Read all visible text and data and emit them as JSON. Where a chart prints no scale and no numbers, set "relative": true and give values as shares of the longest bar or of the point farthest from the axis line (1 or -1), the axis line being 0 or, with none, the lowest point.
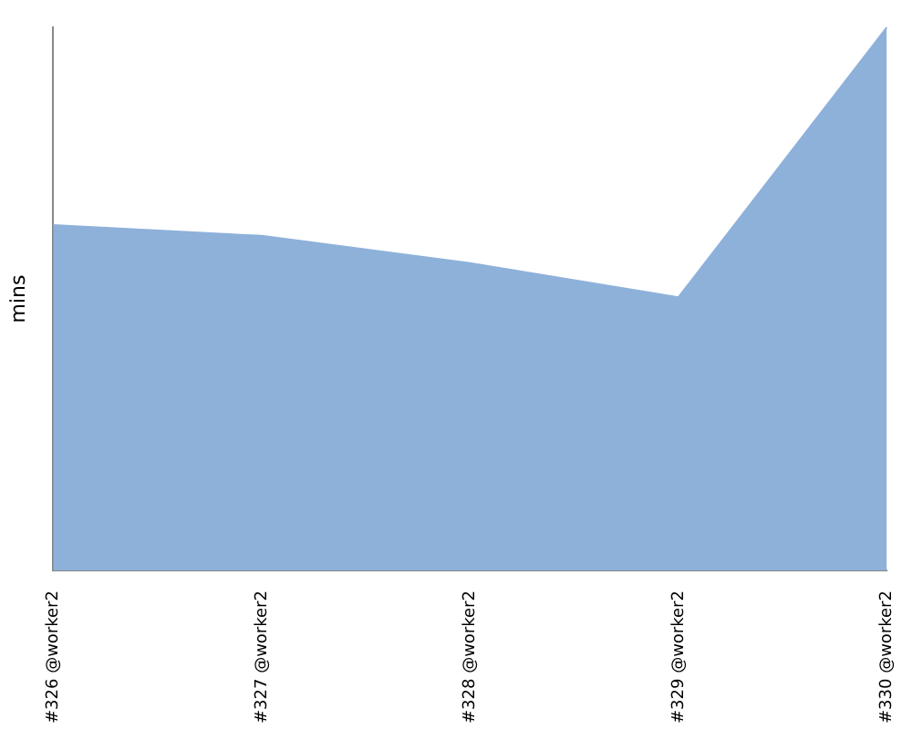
{
  "chart_data": {
    "type": "area",
    "ylabel": "mins",
    "relative": true,
    "categories": [
      "#326 @worker2",
      "#327 @worker2",
      "#328 @worker2",
      "#329 @worker2",
      "#330 @worker2"
    ],
    "series": [
      {
        "color": "#8eb1da",
        "values": [
          0.636,
          0.616,
          0.566,
          0.503,
          1
        ]
      }
    ],
    "grid": false,
    "legend": false
  }
}
